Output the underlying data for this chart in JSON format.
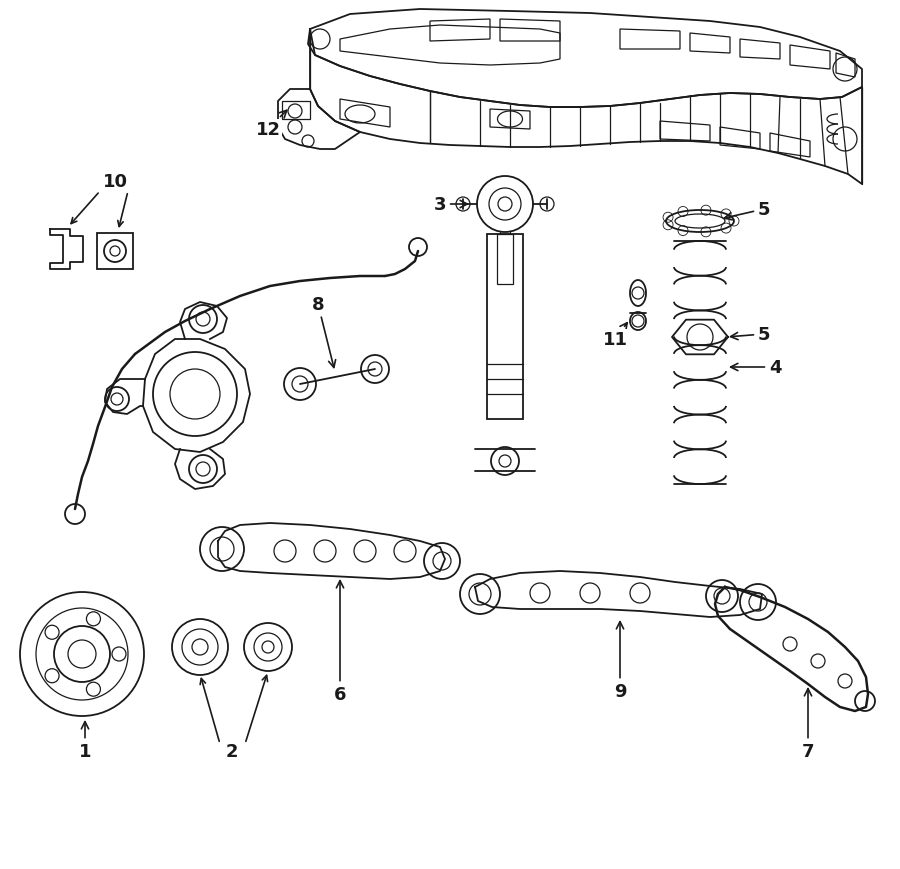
{
  "bg": "#ffffff",
  "lc": "#1a1a1a",
  "fig_w": 9.0,
  "fig_h": 8.7,
  "dpi": 100
}
